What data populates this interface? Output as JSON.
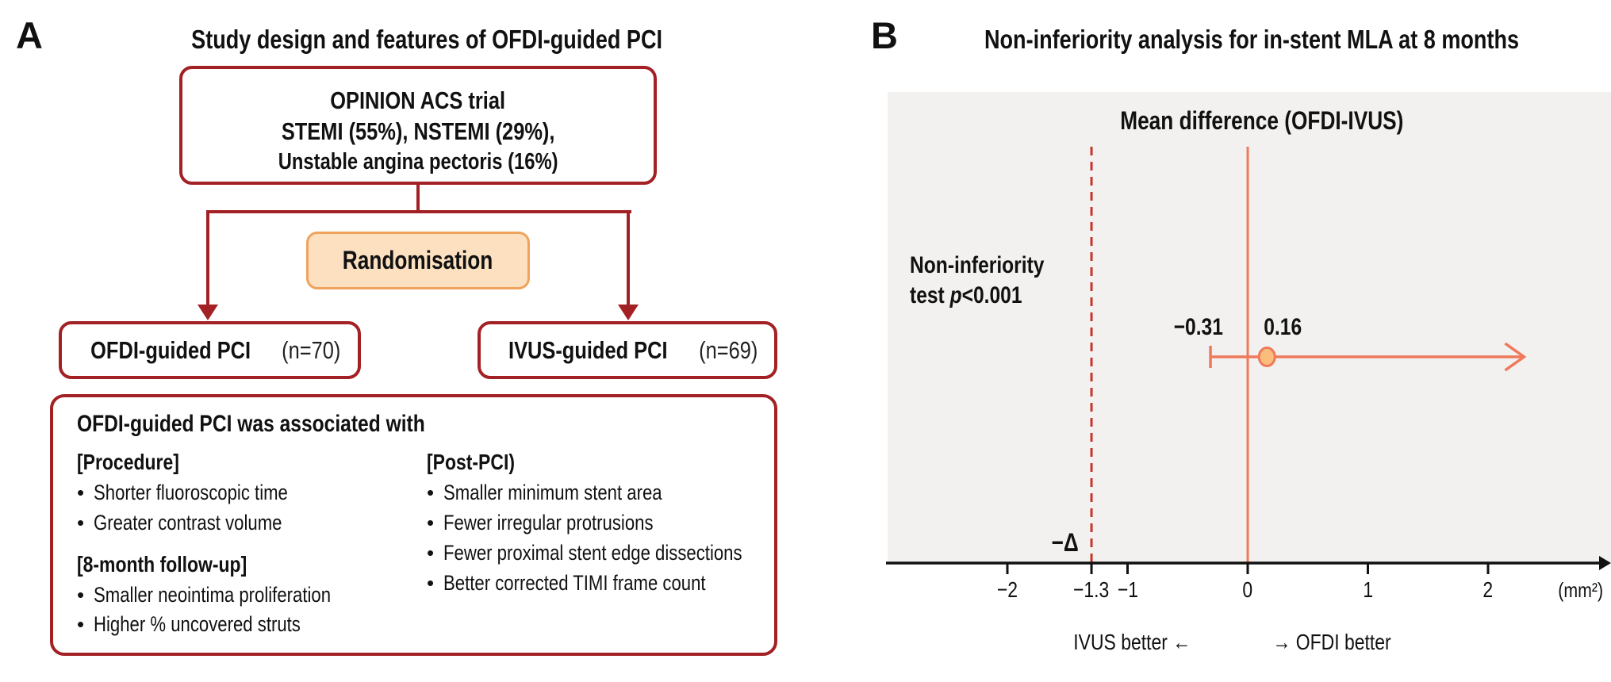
{
  "panel_a": {
    "label": "A",
    "title": "Study design and features of OFDI-guided PCI",
    "top_box_lines": [
      "OPINION ACS trial",
      "STEMI (55%), NSTEMI (29%),",
      "Unstable angina pectoris (16%)"
    ],
    "randomisation_label": "Randomisation",
    "arm_left": {
      "name": "OFDI-guided PCI",
      "n": "(n=70)"
    },
    "arm_right": {
      "name": "IVUS-guided PCI",
      "n": "(n=69)"
    },
    "findings": {
      "heading": "OFDI-guided PCI was associated with",
      "left_column": [
        {
          "type": "header",
          "text": "[Procedure]"
        },
        {
          "type": "bullet",
          "text": "Shorter fluoroscopic time"
        },
        {
          "type": "bullet",
          "text": "Greater contrast volume"
        },
        {
          "type": "header",
          "text": "[8-month follow-up]"
        },
        {
          "type": "bullet",
          "text": "Smaller neointima proliferation"
        },
        {
          "type": "bullet",
          "text": "Higher % uncovered struts"
        }
      ],
      "right_column": [
        {
          "type": "header",
          "text": "[Post-PCI)"
        },
        {
          "type": "bullet",
          "text": "Smaller minimum stent area"
        },
        {
          "type": "bullet",
          "text": "Fewer irregular protrusions"
        },
        {
          "type": "bullet",
          "text": "Fewer proximal stent edge dissections"
        },
        {
          "type": "bullet",
          "text": "Better corrected TIMI frame count"
        }
      ]
    }
  },
  "panel_b": {
    "label": "B",
    "title": "Non-inferiority analysis for in-stent MLA at 8 months",
    "p_line1": "Non-inferiority",
    "p_prefix": "test ",
    "p_symbol": "p",
    "p_value": "<0.001"
  },
  "chart_data": {
    "type": "scatter",
    "subtype": "forest-confidence-interval",
    "title": "Mean difference (OFDI-IVUS)",
    "series": [
      {
        "name": "In-stent MLA mean difference (OFDI-IVUS)",
        "estimate": 0.16,
        "ci_lower": -0.31,
        "ci_upper_beyond_axis": true
      }
    ],
    "estimate": 0.16,
    "estimate_label": "0.16",
    "ci_lower": -0.31,
    "ci_lower_label": "−0.31",
    "arrow_extends_to": 2.3,
    "non_inferiority_margin": -1.3,
    "margin_label": "−Δ",
    "zero_line": 0,
    "p_text": "Non-inferiority test p<0.001",
    "x_ticks": [
      {
        "value": -2,
        "label": "−2"
      },
      {
        "value": -1.3,
        "label": "−1.3"
      },
      {
        "value": -1,
        "label": "−1"
      },
      {
        "value": 0,
        "label": "0"
      },
      {
        "value": 1,
        "label": "1"
      },
      {
        "value": 2,
        "label": "2"
      }
    ],
    "xlim": [
      -3,
      2.95
    ],
    "unit_label": "(mm²)",
    "direction_left": "IVUS better ←",
    "direction_right": "→ OFDI better",
    "grid": false,
    "legend": false
  },
  "colors": {
    "dark_red": "#A32125",
    "dashed_red": "#C8352C",
    "orange_border": "#F0A35C",
    "orange_fill": "#FCE0C0",
    "coral": "#F0795B",
    "marker_fill": "#F9BE7C",
    "plot_bg": "#F2F1EF",
    "text": "#111111"
  }
}
